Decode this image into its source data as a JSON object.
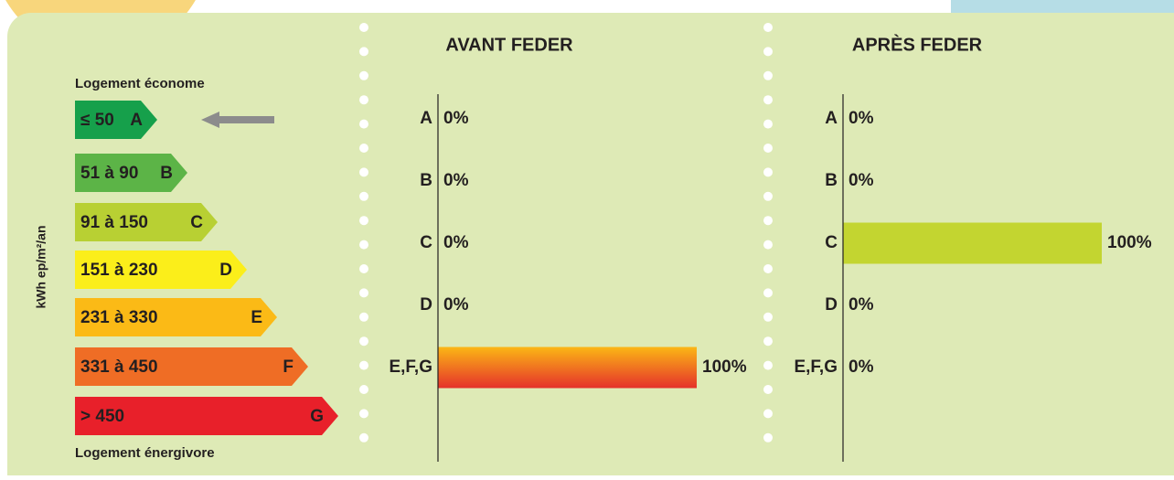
{
  "energy_scale": {
    "axis_label": "kWh ep/m²/an",
    "top_label": "Logement économe",
    "bottom_label": "Logement énergivore",
    "classes": [
      {
        "range": "≤ 50",
        "letter": "A",
        "color": "#16a04b"
      },
      {
        "range": "51 à 90",
        "letter": "B",
        "color": "#5cb447"
      },
      {
        "range": "91 à 150",
        "letter": "C",
        "color": "#b8d033"
      },
      {
        "range": "151 à 230",
        "letter": "D",
        "color": "#fbee1a"
      },
      {
        "range": "231 à 330",
        "letter": "E",
        "color": "#fbba16"
      },
      {
        "range": "331 à 450",
        "letter": "F",
        "color": "#ef6d25"
      },
      {
        "range": "> 450",
        "letter": "G",
        "color": "#e8202a"
      }
    ]
  },
  "chart_data": [
    {
      "type": "bar",
      "title": "AVANT FEDER",
      "categories": [
        "A",
        "B",
        "C",
        "D",
        "E,F,G"
      ],
      "values": [
        0,
        0,
        0,
        0,
        100
      ],
      "value_labels": [
        "0%",
        "0%",
        "0%",
        "0%",
        "100%"
      ],
      "xlim": [
        0,
        100
      ],
      "color": [
        "#fbb715",
        "#e5312b"
      ]
    },
    {
      "type": "bar",
      "title": "APRÈS FEDER",
      "categories": [
        "A",
        "B",
        "C",
        "D",
        "E,F,G"
      ],
      "values": [
        0,
        0,
        100,
        0,
        0
      ],
      "value_labels": [
        "0%",
        "0%",
        "100%",
        "0%",
        "0%"
      ],
      "xlim": [
        0,
        100
      ],
      "color": "#c3d530"
    }
  ]
}
